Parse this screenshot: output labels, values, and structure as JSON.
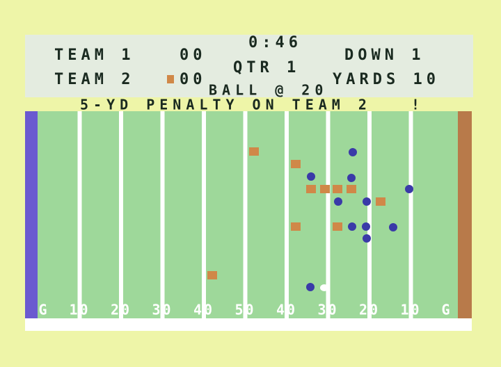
{
  "scoreboard": {
    "clock": "0:46",
    "team1": {
      "name": "TEAM 1",
      "score": "00"
    },
    "team2": {
      "name": "TEAM 2",
      "score": "00"
    },
    "quarter": "QTR 1",
    "down": "DOWN 1",
    "yards": "YARDS 10",
    "ball": "BALL @ 20"
  },
  "message": "5-YD PENALTY ON TEAM 2   !",
  "field": {
    "yard_labels": [
      "G",
      "10",
      "20",
      "30",
      "40",
      "50",
      "40",
      "30",
      "20",
      "10",
      "G"
    ]
  }
}
